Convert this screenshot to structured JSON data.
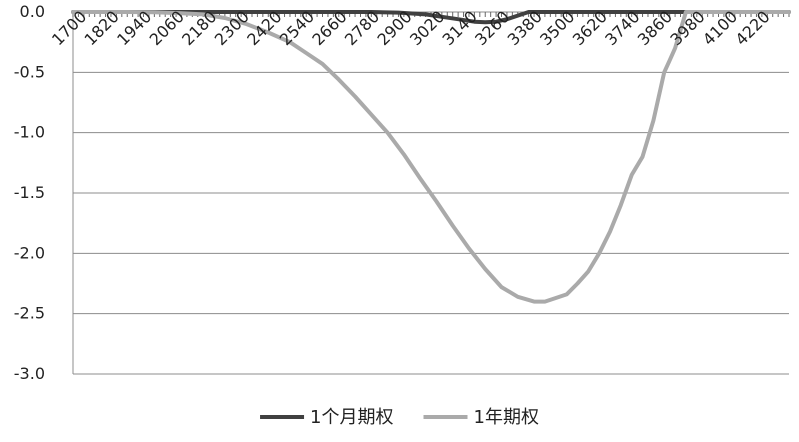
{
  "chart_data": {
    "type": "line",
    "title": "",
    "xlabel": "",
    "ylabel": "",
    "xlim": [
      1700,
      4340
    ],
    "ylim": [
      -3.0,
      0.0
    ],
    "y_ticks": [
      0.0,
      -0.5,
      -1.0,
      -1.5,
      -2.0,
      -2.5,
      -3.0
    ],
    "y_tick_labels": [
      "0.0",
      "-0.5",
      "-1.0",
      "-1.5",
      "-2.0",
      "-2.5",
      "-3.0"
    ],
    "x_ticks": [
      1700,
      1820,
      1940,
      2060,
      2180,
      2300,
      2420,
      2540,
      2660,
      2780,
      2900,
      3020,
      3140,
      3260,
      3380,
      3500,
      3620,
      3740,
      3860,
      3980,
      4100,
      4220
    ],
    "x_tick_labels": [
      "1700",
      "1820",
      "1940",
      "2060",
      "2180",
      "2300",
      "2420",
      "2540",
      "2660",
      "2780",
      "2900",
      "3020",
      "3140",
      "3260",
      "3380",
      "3500",
      "3620",
      "3740",
      "3860",
      "3980",
      "4100",
      "4220"
    ],
    "x_minor_step": 20,
    "grid": true,
    "legend_position": "bottom",
    "series": [
      {
        "name": "1个月期权",
        "color": "#404040",
        "x": [
          1700,
          2700,
          2800,
          2900,
          3000,
          3060,
          3120,
          3180,
          3220,
          3260,
          3300,
          3340,
          3380,
          3420,
          4340
        ],
        "y": [
          0.0,
          0.0,
          0.0,
          -0.005,
          -0.02,
          -0.04,
          -0.06,
          -0.08,
          -0.085,
          -0.08,
          -0.06,
          -0.03,
          0.0,
          0.0,
          0.0
        ]
      },
      {
        "name": "1年期权",
        "color": "#aaaaaa",
        "x": [
          1700,
          1900,
          2000,
          2100,
          2180,
          2260,
          2340,
          2420,
          2500,
          2560,
          2620,
          2680,
          2740,
          2800,
          2860,
          2920,
          2980,
          3040,
          3100,
          3160,
          3220,
          3280,
          3340,
          3400,
          3440,
          3480,
          3520,
          3560,
          3600,
          3640,
          3680,
          3720,
          3760,
          3800,
          3840,
          3880,
          3900,
          3920,
          3960,
          4340
        ],
        "y": [
          0.0,
          0.0,
          -0.002,
          -0.01,
          -0.02,
          -0.05,
          -0.1,
          -0.17,
          -0.25,
          -0.34,
          -0.43,
          -0.56,
          -0.7,
          -0.85,
          -1.0,
          -1.18,
          -1.38,
          -1.57,
          -1.77,
          -1.96,
          -2.13,
          -2.28,
          -2.36,
          -2.4,
          -2.4,
          -2.37,
          -2.34,
          -2.25,
          -2.15,
          -2.0,
          -1.82,
          -1.6,
          -1.35,
          -1.2,
          -0.9,
          -0.5,
          -0.4,
          -0.3,
          0.0,
          0.0
        ]
      }
    ]
  }
}
